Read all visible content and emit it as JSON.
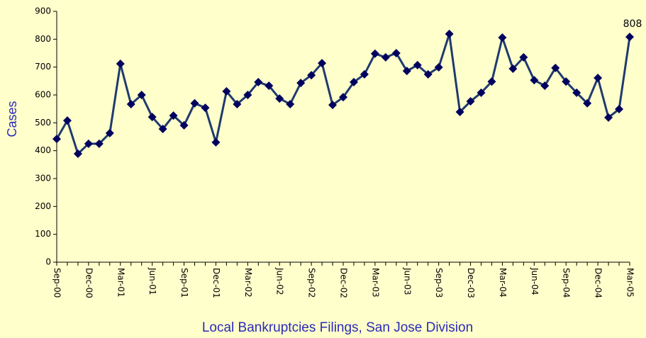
{
  "chart_data": {
    "type": "line",
    "x_label": "Local Bankruptcies Filings, San Jose Division",
    "y_label": "Cases",
    "categories": [
      "Sep-00",
      null,
      null,
      "Dec-00",
      null,
      null,
      "Mar-01",
      null,
      null,
      "Jun-01",
      null,
      null,
      "Sep-01",
      null,
      null,
      "Dec-01",
      null,
      null,
      "Mar-02",
      null,
      null,
      "Jun-02",
      null,
      null,
      "Sep-02",
      null,
      null,
      "Dec-02",
      null,
      null,
      "Mar-03",
      null,
      null,
      "Jun-03",
      null,
      null,
      "Sep-03",
      null,
      null,
      "Dec-03",
      null,
      null,
      "Mar-04",
      null,
      null,
      "Jun-04",
      null,
      null,
      "Sep-04",
      null,
      null,
      "Dec-04",
      null,
      null,
      "Mar-05"
    ],
    "series": [
      {
        "name": "Cases",
        "color": "#1f3a6e",
        "marker_color": "#00005e",
        "values": [
          442,
          508,
          389,
          425,
          425,
          463,
          712,
          567,
          600,
          521,
          478,
          526,
          491,
          570,
          554,
          430,
          613,
          567,
          600,
          646,
          633,
          587,
          567,
          643,
          671,
          714,
          564,
          592,
          646,
          674,
          748,
          735,
          750,
          686,
          707,
          674,
          699,
          819,
          539,
          577,
          608,
          648,
          806,
          694,
          735,
          653,
          633,
          697,
          648,
          608,
          570,
          661,
          519,
          549,
          808
        ]
      }
    ],
    "labeled_points": [
      54
    ],
    "ylim": [
      0,
      900
    ],
    "yticks": [
      0,
      100,
      200,
      300,
      400,
      500,
      600,
      700,
      800,
      900
    ],
    "background": "#ffffcc",
    "axis_title_color": "#2a2ab8"
  }
}
